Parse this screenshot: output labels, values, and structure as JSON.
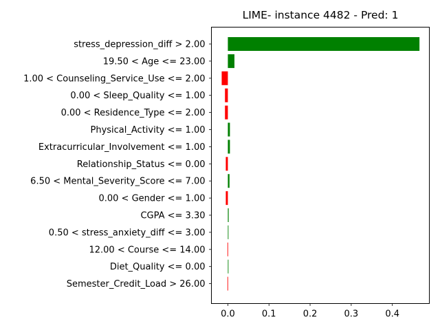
{
  "chart_data": {
    "type": "bar",
    "orientation": "horizontal",
    "title": "LIME- instance 4482 - Pred: 1",
    "xlabel": "",
    "ylabel": "",
    "xlim": [
      -0.04,
      0.49
    ],
    "xticks": [
      "0.0",
      "0.1",
      "0.2",
      "0.3",
      "0.4"
    ],
    "xtick_values": [
      0.0,
      0.1,
      0.2,
      0.3,
      0.4
    ],
    "grid": false,
    "colors": {
      "positive": "#008000",
      "negative": "#ff0000"
    },
    "categories": [
      "stress_depression_diff > 2.00",
      "19.50 < Age <= 23.00",
      "1.00 < Counseling_Service_Use <= 2.00",
      "0.00 < Sleep_Quality <= 1.00",
      "0.00 < Residence_Type <= 2.00",
      "Physical_Activity <= 1.00",
      "Extracurricular_Involvement <= 1.00",
      "Relationship_Status <= 0.00",
      "6.50 < Mental_Severity_Score <= 7.00",
      "0.00 < Gender <= 1.00",
      "CGPA <= 3.30",
      "0.50 < stress_anxiety_diff <= 3.00",
      "12.00 < Course <= 14.00",
      "Diet_Quality <= 0.00",
      "Semester_Credit_Load > 26.00"
    ],
    "values": [
      0.466,
      0.016,
      -0.015,
      -0.007,
      -0.007,
      0.005,
      0.005,
      -0.005,
      0.004,
      -0.005,
      0.002,
      0.0,
      -0.001,
      0.0,
      -0.001
    ]
  }
}
